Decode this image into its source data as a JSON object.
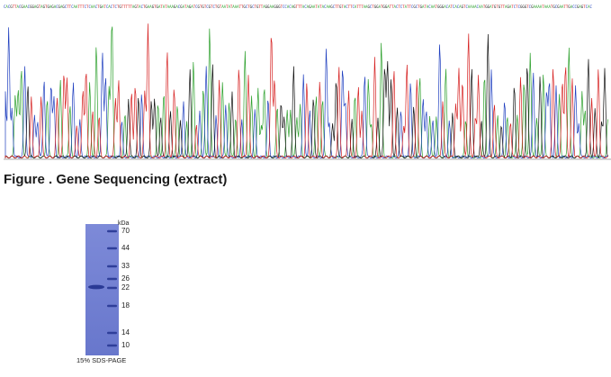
{
  "sequence_figure": {
    "caption": "Figure . Gene Sequencing (extract)",
    "colors": {
      "A": "#2ca02c",
      "C": "#1f3fbf",
      "G": "#111111",
      "T": "#d62020"
    }
  },
  "gel": {
    "unit": "kDa",
    "markers": [
      "70",
      "44",
      "33",
      "26",
      "22",
      "18",
      "14",
      "10"
    ],
    "caption": "15% SDS-PAGE",
    "colors": {
      "gel": "#6f7fd2",
      "band": "#2f3f9a"
    }
  }
}
